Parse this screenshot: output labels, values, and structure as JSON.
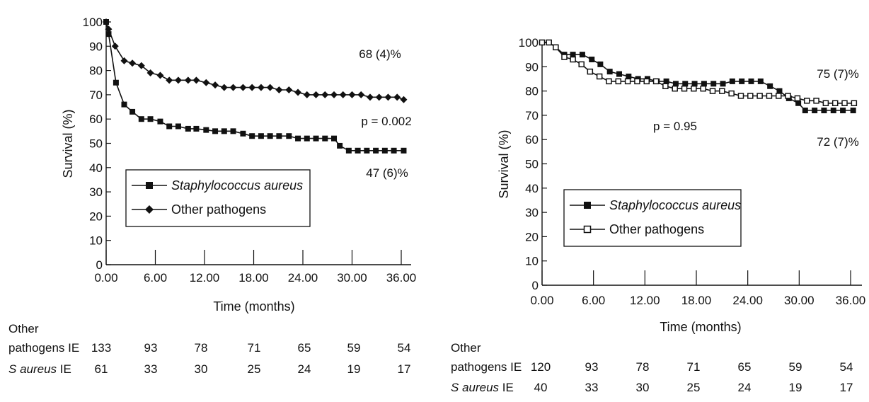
{
  "chart_data": [
    {
      "type": "line",
      "panel": "left",
      "xlabel": "Time (months)",
      "ylabel": "Survival (%)",
      "xlim": [
        0,
        37
      ],
      "ylim": [
        0,
        100
      ],
      "xticks": [
        0,
        6,
        12,
        18,
        24,
        30,
        36
      ],
      "xtick_labels": [
        "0.00",
        "6.00",
        "12.00",
        "18.00",
        "24.00",
        "30.00",
        "36.00"
      ],
      "yticks": [
        0,
        10,
        20,
        30,
        40,
        50,
        60,
        70,
        80,
        90,
        100
      ],
      "ytick_labels": [
        "0",
        "10",
        "20",
        "30",
        "40",
        "50",
        "60",
        "70",
        "80",
        "90",
        "100"
      ],
      "grid": false,
      "legend_position": "lower-left",
      "series": [
        {
          "name": "Staphylococcus aureus",
          "marker": "filled-square",
          "x": [
            0,
            0.3,
            1.2,
            2.2,
            3.2,
            4.3,
            5.4,
            6.6,
            7.7,
            8.8,
            10,
            11,
            12.2,
            13.3,
            14.4,
            15.5,
            16.7,
            17.8,
            18.9,
            20,
            21.1,
            22.3,
            23.4,
            24.5,
            25.6,
            26.7,
            27.8,
            28.5,
            29.6,
            30.7,
            31.8,
            32.9,
            34,
            35.1,
            36.3
          ],
          "y": [
            100,
            95,
            75,
            66,
            63,
            60,
            60,
            59,
            57,
            57,
            56,
            56,
            55.5,
            55,
            55,
            55,
            54,
            53,
            53,
            53,
            53,
            53,
            52,
            52,
            52,
            52,
            52,
            49,
            47,
            47,
            47,
            47,
            47,
            47,
            47
          ]
        },
        {
          "name": "Other pathogens",
          "marker": "filled-diamond",
          "x": [
            0,
            0.3,
            1.1,
            2.2,
            3.2,
            4.3,
            5.4,
            6.6,
            7.7,
            8.8,
            10,
            11,
            12.2,
            13.3,
            14.4,
            15.5,
            16.7,
            17.8,
            18.9,
            20,
            21.1,
            22.3,
            23.4,
            24.5,
            25.6,
            26.7,
            27.8,
            28.9,
            30,
            31.1,
            32.2,
            33.3,
            34.4,
            35.5,
            36.3
          ],
          "y": [
            100,
            97,
            90,
            84,
            83,
            82,
            79,
            78,
            76,
            76,
            76,
            76,
            75,
            74,
            73,
            73,
            73,
            73,
            73,
            73,
            72,
            72,
            71,
            70,
            70,
            70,
            70,
            70,
            70,
            70,
            69,
            69,
            69,
            69,
            68
          ]
        }
      ],
      "annotations": {
        "top_value": "68 (4)%",
        "p_value": "p = 0.002",
        "bottom_value": "47 (6)%"
      },
      "risk_table": {
        "other_label_line1": "Other",
        "other_label_line2": "pathogens IE",
        "saureus_label_prefix": "S",
        "saureus_label_italic": "aureus",
        "saureus_label_suffix": "IE",
        "other_values": [
          "133",
          "93",
          "78",
          "71",
          "65",
          "59",
          "54"
        ],
        "saureus_values": [
          "61",
          "33",
          "30",
          "25",
          "24",
          "19",
          "17"
        ]
      }
    },
    {
      "type": "line",
      "panel": "right",
      "xlabel": "Time (months)",
      "ylabel": "Survival (%)",
      "xlim": [
        0,
        37
      ],
      "ylim": [
        0,
        100
      ],
      "xticks": [
        0,
        6,
        12,
        18,
        24,
        30,
        36
      ],
      "xtick_labels": [
        "0.00",
        "6.00",
        "12.00",
        "18.00",
        "24.00",
        "30.00",
        "36.00"
      ],
      "yticks": [
        0,
        10,
        20,
        30,
        40,
        50,
        60,
        70,
        80,
        90,
        100
      ],
      "ytick_labels": [
        "0",
        "10",
        "20",
        "30",
        "40",
        "50",
        "60",
        "70",
        "80",
        "90",
        "100"
      ],
      "grid": false,
      "legend_position": "lower-left",
      "series": [
        {
          "name": "Staphylococcus aureus",
          "marker": "filled-square",
          "x": [
            0,
            0.8,
            1.6,
            2.6,
            3.6,
            4.7,
            5.8,
            6.8,
            7.9,
            9,
            10.1,
            11.2,
            12.3,
            13.4,
            14.5,
            15.6,
            16.7,
            17.8,
            18.9,
            20,
            21.1,
            22.2,
            23.3,
            24.4,
            25.5,
            26.6,
            27.7,
            28.8,
            29.9,
            30.7,
            31.8,
            32.9,
            34,
            35.1,
            36.3
          ],
          "y": [
            100,
            100,
            98,
            95,
            95,
            95,
            93,
            91,
            88,
            87,
            86,
            85,
            85,
            84,
            84,
            83,
            83,
            83,
            83,
            83,
            83,
            84,
            84,
            84,
            84,
            82,
            80,
            77,
            75,
            72,
            72,
            72,
            72,
            72,
            72
          ]
        },
        {
          "name": "Other pathogens",
          "marker": "open-square",
          "x": [
            0,
            0.8,
            1.6,
            2.6,
            3.6,
            4.6,
            5.6,
            6.7,
            7.8,
            8.9,
            10,
            11.1,
            12.2,
            13.3,
            14.4,
            15.5,
            16.6,
            17.7,
            18.8,
            19.9,
            21,
            22.1,
            23.2,
            24.3,
            25.4,
            26.5,
            27.6,
            28.7,
            29.8,
            30.9,
            32,
            33.1,
            34.2,
            35.3,
            36.4
          ],
          "y": [
            100,
            100,
            98,
            94,
            93,
            91,
            88,
            86,
            84,
            84,
            84,
            84,
            84,
            84,
            82,
            81,
            81,
            81,
            81,
            80,
            80,
            79,
            78,
            78,
            78,
            78,
            78,
            78,
            77,
            76,
            76,
            75,
            75,
            75,
            75
          ]
        }
      ],
      "annotations": {
        "top_value": "75 (7)%",
        "p_value": "p = 0.95",
        "bottom_value": "72 (7)%"
      },
      "risk_table": {
        "other_label_line1": "Other",
        "other_label_line2": "pathogens IE",
        "saureus_label_prefix": "S",
        "saureus_label_italic": "aureus",
        "saureus_label_suffix": "IE",
        "other_values": [
          "120",
          "93",
          "78",
          "71",
          "65",
          "59",
          "54"
        ],
        "saureus_values": [
          "40",
          "33",
          "30",
          "25",
          "24",
          "19",
          "17"
        ]
      }
    }
  ]
}
